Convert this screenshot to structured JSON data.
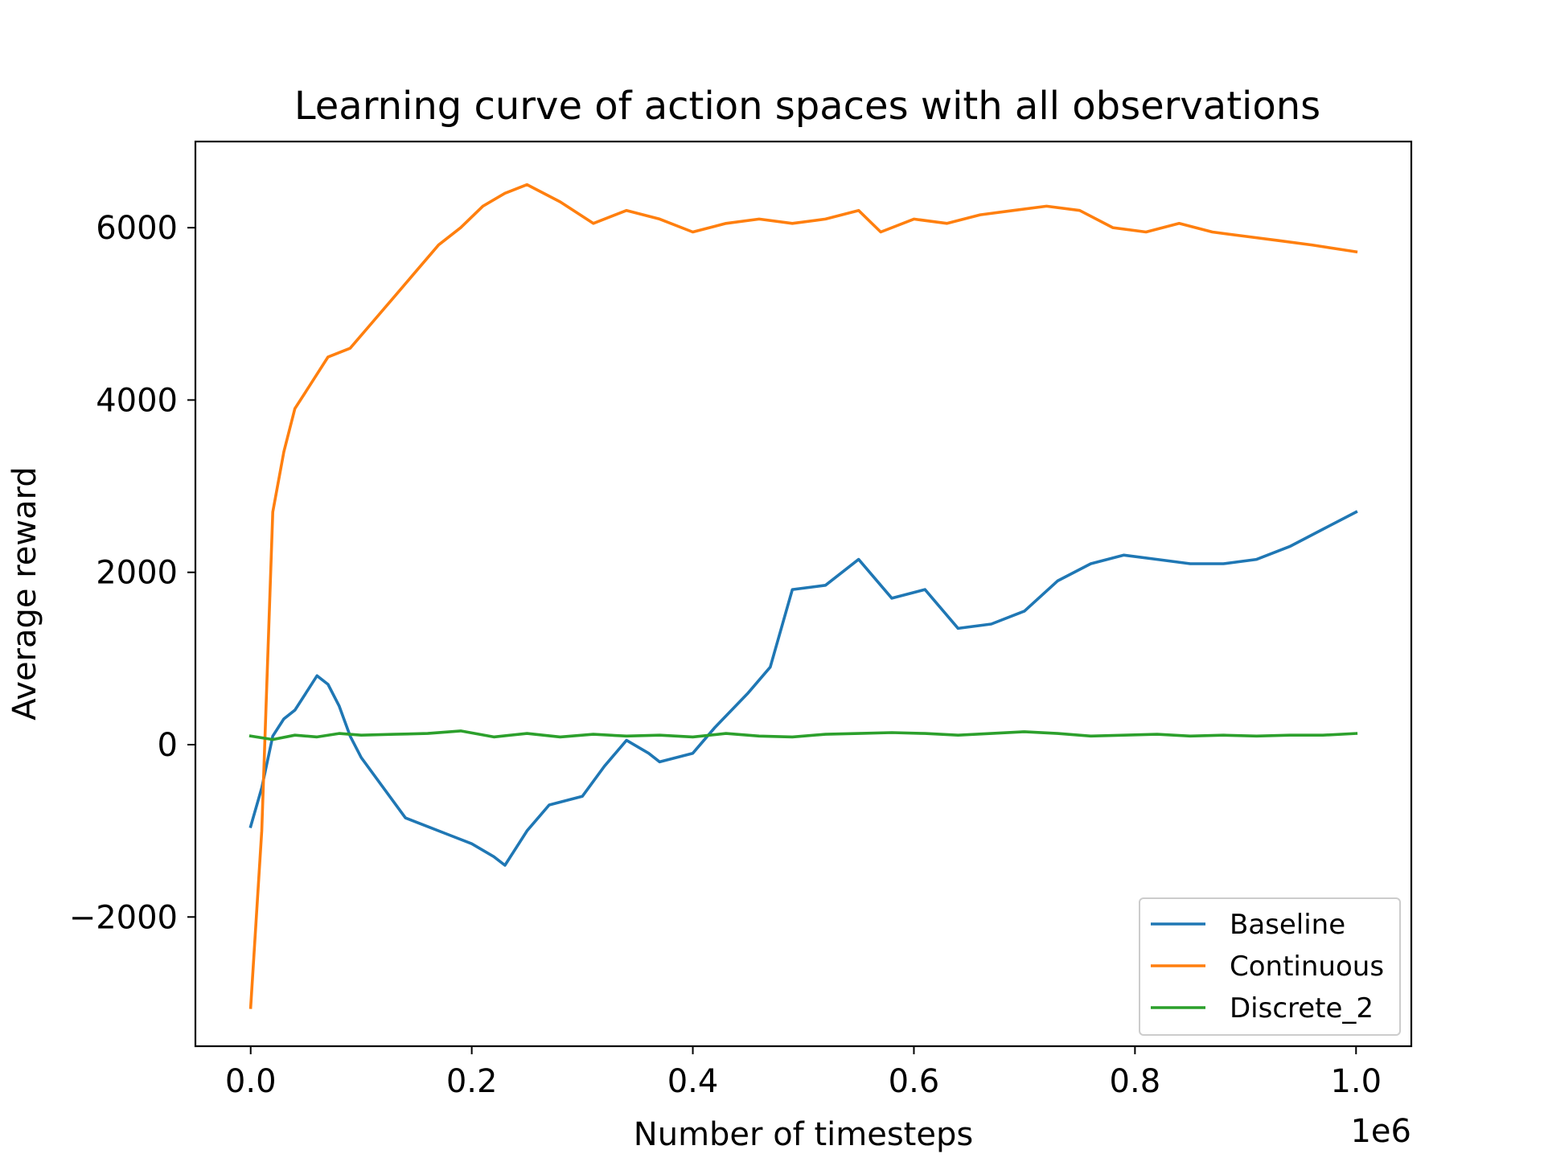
{
  "chart_data": {
    "type": "line",
    "title": "Learning curve of action spaces with all observations",
    "xlabel": "Number of timesteps",
    "ylabel": "Average reward",
    "x_scale_label": "1e6",
    "xlim": [
      -0.05,
      1.05
    ],
    "ylim": [
      -3500,
      7000
    ],
    "xticks": [
      0.0,
      0.2,
      0.4,
      0.6,
      0.8,
      1.0
    ],
    "xtick_labels": [
      "0.0",
      "0.2",
      "0.4",
      "0.6",
      "0.8",
      "1.0"
    ],
    "yticks": [
      -2000,
      0,
      2000,
      4000,
      6000
    ],
    "ytick_labels": [
      "−2000",
      "0",
      "2000",
      "4000",
      "6000"
    ],
    "grid": false,
    "legend_position": "lower-right",
    "series": [
      {
        "name": "Baseline",
        "color": "#1f77b4",
        "x": [
          0.0,
          0.01,
          0.02,
          0.03,
          0.04,
          0.05,
          0.06,
          0.07,
          0.08,
          0.09,
          0.1,
          0.12,
          0.14,
          0.16,
          0.18,
          0.2,
          0.22,
          0.23,
          0.25,
          0.27,
          0.3,
          0.32,
          0.34,
          0.36,
          0.37,
          0.4,
          0.42,
          0.45,
          0.47,
          0.49,
          0.52,
          0.55,
          0.58,
          0.61,
          0.64,
          0.67,
          0.7,
          0.73,
          0.76,
          0.79,
          0.82,
          0.85,
          0.88,
          0.91,
          0.94,
          0.97,
          1.0
        ],
        "y": [
          -950,
          -500,
          100,
          300,
          400,
          600,
          800,
          700,
          450,
          100,
          -150,
          -500,
          -850,
          -950,
          -1050,
          -1150,
          -1300,
          -1400,
          -1000,
          -700,
          -600,
          -250,
          50,
          -100,
          -200,
          -100,
          200,
          600,
          900,
          1800,
          1850,
          2150,
          1700,
          1800,
          1350,
          1400,
          1550,
          1900,
          2100,
          2200,
          2150,
          2100,
          2100,
          2150,
          2300,
          2500,
          2700
        ]
      },
      {
        "name": "Continuous",
        "color": "#ff7f0e",
        "x": [
          0.0,
          0.01,
          0.02,
          0.03,
          0.04,
          0.05,
          0.07,
          0.09,
          0.11,
          0.13,
          0.15,
          0.17,
          0.19,
          0.21,
          0.23,
          0.25,
          0.28,
          0.31,
          0.34,
          0.37,
          0.4,
          0.43,
          0.46,
          0.49,
          0.52,
          0.55,
          0.57,
          0.6,
          0.63,
          0.66,
          0.69,
          0.72,
          0.75,
          0.78,
          0.81,
          0.84,
          0.87,
          0.9,
          0.93,
          0.96,
          1.0
        ],
        "y": [
          -3050,
          -1000,
          2700,
          3400,
          3900,
          4100,
          4500,
          4600,
          4900,
          5200,
          5500,
          5800,
          6000,
          6250,
          6400,
          6500,
          6300,
          6050,
          6200,
          6100,
          5950,
          6050,
          6100,
          6050,
          6100,
          6200,
          5950,
          6100,
          6050,
          6150,
          6200,
          6250,
          6200,
          6000,
          5950,
          6050,
          5950,
          5900,
          5850,
          5800,
          5720
        ]
      },
      {
        "name": "Discrete_2",
        "color": "#2ca02c",
        "x": [
          0.0,
          0.02,
          0.04,
          0.06,
          0.08,
          0.1,
          0.13,
          0.16,
          0.19,
          0.22,
          0.25,
          0.28,
          0.31,
          0.34,
          0.37,
          0.4,
          0.43,
          0.46,
          0.49,
          0.52,
          0.55,
          0.58,
          0.61,
          0.64,
          0.67,
          0.7,
          0.73,
          0.76,
          0.79,
          0.82,
          0.85,
          0.88,
          0.91,
          0.94,
          0.97,
          1.0
        ],
        "y": [
          100,
          60,
          110,
          90,
          130,
          110,
          120,
          130,
          160,
          90,
          130,
          90,
          120,
          100,
          110,
          90,
          130,
          100,
          90,
          120,
          130,
          140,
          130,
          110,
          130,
          150,
          130,
          100,
          110,
          120,
          100,
          110,
          100,
          110,
          110,
          130
        ]
      }
    ]
  }
}
